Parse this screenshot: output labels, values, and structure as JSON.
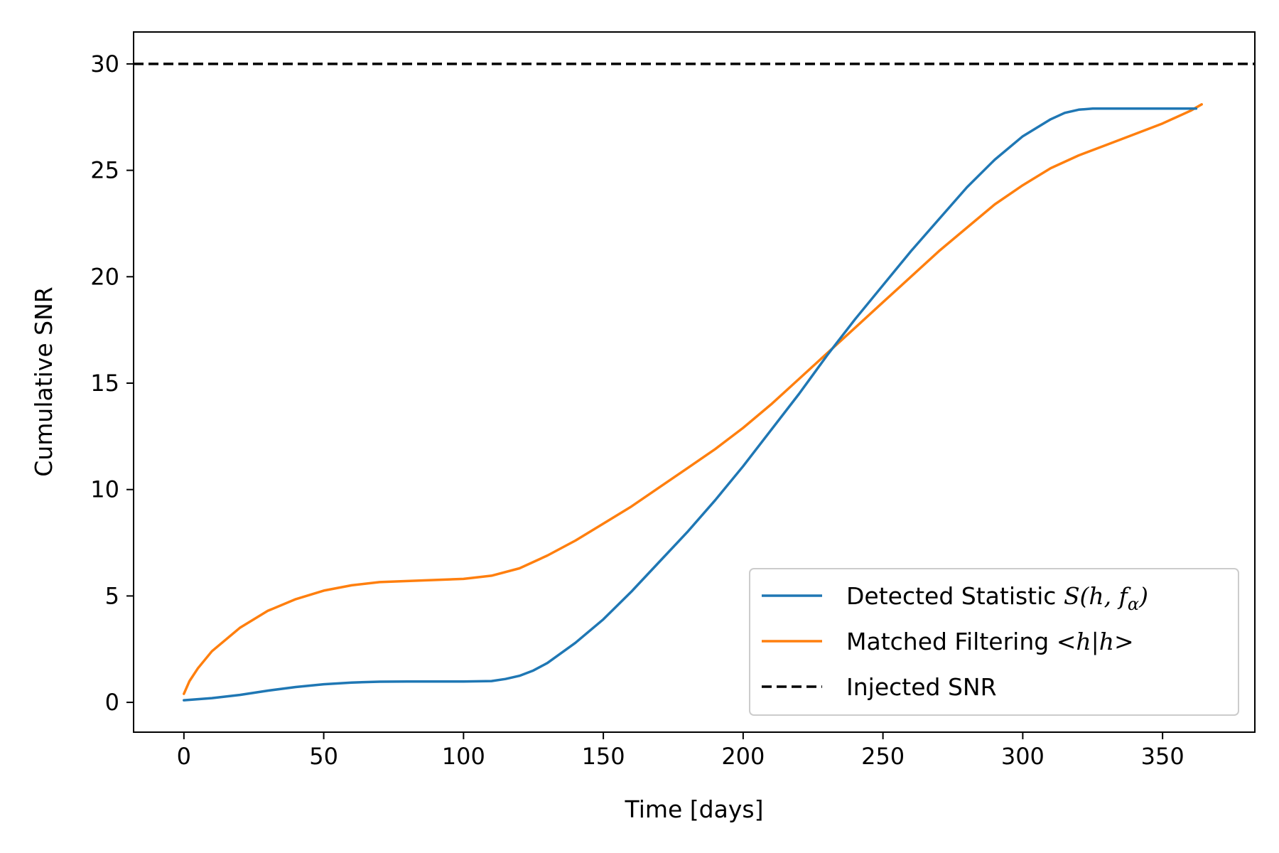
{
  "chart_data": {
    "type": "line",
    "title": "",
    "xlabel": "Time [days]",
    "ylabel": "Cumulative SNR",
    "xlim": [
      -18,
      383
    ],
    "ylim": [
      -1.4,
      31.5
    ],
    "xticks": [
      0,
      50,
      100,
      150,
      200,
      250,
      300,
      350
    ],
    "yticks": [
      0,
      5,
      10,
      15,
      20,
      25,
      30
    ],
    "grid": false,
    "legend_position": "lower-right",
    "series": [
      {
        "name": "Detected Statistic S(h, f_α)",
        "color": "#1f77b4",
        "style": "solid",
        "x": [
          0,
          10,
          20,
          30,
          40,
          50,
          60,
          70,
          80,
          90,
          100,
          110,
          115,
          120,
          125,
          130,
          140,
          150,
          160,
          170,
          180,
          190,
          200,
          210,
          220,
          230,
          240,
          250,
          260,
          270,
          280,
          290,
          300,
          310,
          315,
          320,
          325,
          330,
          340,
          350,
          360,
          362
        ],
        "y": [
          0.1,
          0.2,
          0.35,
          0.55,
          0.72,
          0.85,
          0.93,
          0.97,
          0.98,
          0.98,
          0.98,
          1.0,
          1.1,
          1.25,
          1.5,
          1.85,
          2.8,
          3.9,
          5.2,
          6.6,
          8.0,
          9.5,
          11.1,
          12.8,
          14.5,
          16.3,
          18.0,
          19.6,
          21.2,
          22.7,
          24.2,
          25.5,
          26.6,
          27.4,
          27.7,
          27.85,
          27.9,
          27.9,
          27.9,
          27.9,
          27.9,
          27.9
        ]
      },
      {
        "name": "Matched Filtering <h|h>",
        "color": "#ff7f0e",
        "style": "solid",
        "x": [
          0,
          2,
          5,
          10,
          20,
          30,
          40,
          50,
          60,
          70,
          80,
          90,
          100,
          110,
          120,
          130,
          140,
          150,
          160,
          170,
          180,
          190,
          200,
          210,
          220,
          230,
          240,
          250,
          260,
          270,
          280,
          290,
          300,
          310,
          320,
          330,
          340,
          350,
          360,
          364
        ],
        "y": [
          0.4,
          1.0,
          1.6,
          2.4,
          3.5,
          4.3,
          4.85,
          5.25,
          5.5,
          5.65,
          5.7,
          5.75,
          5.8,
          5.95,
          6.3,
          6.9,
          7.6,
          8.4,
          9.2,
          10.1,
          11.0,
          11.9,
          12.9,
          14.0,
          15.2,
          16.4,
          17.6,
          18.8,
          20.0,
          21.2,
          22.3,
          23.4,
          24.3,
          25.1,
          25.7,
          26.2,
          26.7,
          27.2,
          27.8,
          28.1
        ]
      },
      {
        "name": "Injected SNR",
        "color": "#000000",
        "style": "dashed",
        "x": [
          -18,
          383
        ],
        "y": [
          30,
          30
        ]
      }
    ],
    "legend": {
      "entries": [
        {
          "text": "Detected Statistic ",
          "math": "S(h, f",
          "sub": "α",
          "close": ")"
        },
        {
          "text": "Matched Filtering ",
          "math": "<h|h>",
          "sub": "",
          "close": ""
        },
        {
          "text": "Injected SNR",
          "math": "",
          "sub": "",
          "close": ""
        }
      ]
    }
  }
}
